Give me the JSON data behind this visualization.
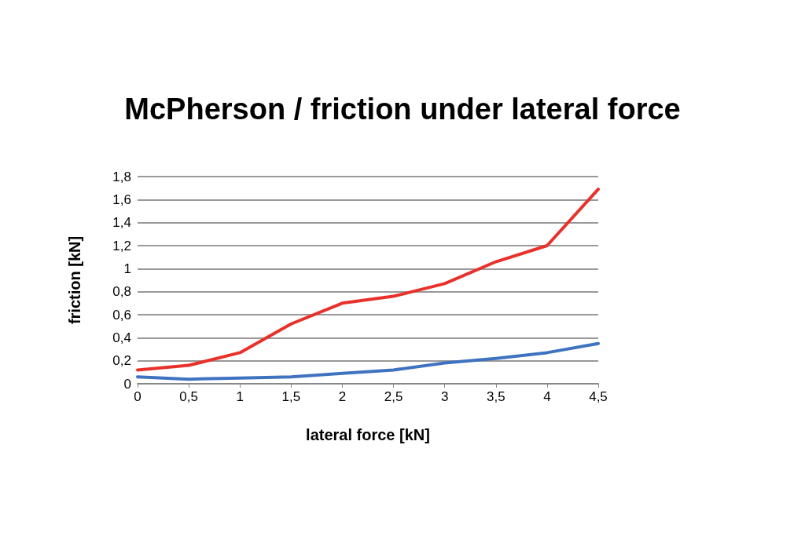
{
  "chart_data": {
    "type": "line",
    "title": "McPherson / friction under lateral force",
    "xlabel": "lateral force [kN]",
    "ylabel": "friction [kN]",
    "x": [
      0,
      0.5,
      1,
      1.5,
      2,
      2.5,
      3,
      3.5,
      4,
      4.5
    ],
    "series": [
      {
        "color": "#e8312a",
        "values": [
          0.12,
          0.16,
          0.27,
          0.52,
          0.7,
          0.76,
          0.87,
          1.06,
          1.2,
          1.69
        ]
      },
      {
        "color": "#3f73c0",
        "values": [
          0.06,
          0.04,
          0.05,
          0.06,
          0.09,
          0.12,
          0.18,
          0.22,
          0.27,
          0.35
        ]
      }
    ],
    "xlim": [
      0,
      4.5
    ],
    "xticks": [
      0,
      {
        "value": 0.5,
        "label": "0,5"
      },
      1,
      {
        "value": 1.5,
        "label": "1,5"
      },
      2,
      {
        "value": 2.5,
        "label": "2,5"
      },
      3,
      {
        "value": 3.5,
        "label": "3,5"
      },
      4,
      {
        "value": 4.5,
        "label": "4,5"
      }
    ],
    "ylim": [
      0,
      1.8
    ],
    "yticks": [
      0,
      {
        "value": 0.2,
        "label": "0,2"
      },
      {
        "value": 0.4,
        "label": "0,4"
      },
      {
        "value": 0.6,
        "label": "0,6"
      },
      {
        "value": 0.8,
        "label": "0,8"
      },
      1,
      {
        "value": 1.2,
        "label": "1,2"
      },
      {
        "value": 1.4,
        "label": "1,4"
      },
      {
        "value": 1.6,
        "label": "1,6"
      },
      {
        "value": 1.8,
        "label": "1,8"
      }
    ],
    "grid": "y",
    "marker": "none",
    "line_style": "solid"
  }
}
